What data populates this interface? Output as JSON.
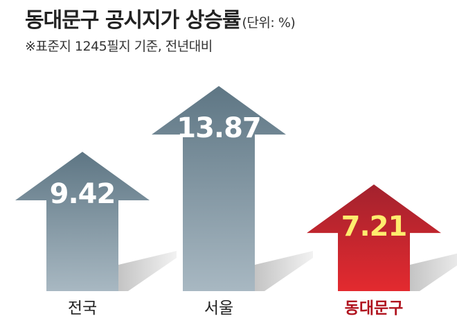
{
  "header": {
    "title": "동대문구 공시지가 상승률",
    "unit": "(단위: %)",
    "note": "※표준지 1245필지 기준, 전년대비"
  },
  "colors": {
    "gray_top": "#5e7684",
    "gray_bottom": "#a8b8c2",
    "red_top": "#a3222e",
    "red_bottom": "#e32a2f",
    "value_light": "#ffffff",
    "value_highlight": "#ffec6e",
    "label_dark": "#222222",
    "label_red": "#b0141f",
    "shadow": "#c8c8c8"
  },
  "chart_data": {
    "type": "bar",
    "title": "동대문구 공시지가 상승률",
    "categories": [
      "전국",
      "서울",
      "동대문구"
    ],
    "values": [
      9.42,
      13.87,
      7.21
    ],
    "value_labels": [
      "9.42",
      "13.87",
      "7.21"
    ],
    "highlight_index": 2,
    "unit": "%",
    "ylim": [
      0,
      15
    ],
    "grid": false
  }
}
